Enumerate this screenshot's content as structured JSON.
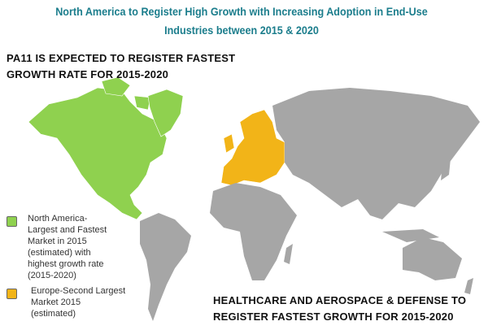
{
  "header": {
    "title_lines": [
      "North America to Register High Growth with Increasing Adoption in End-Use",
      "Industries between 2015 & 2020"
    ]
  },
  "highlight_top": {
    "lines": [
      "PA11 IS EXPECTED TO REGISTER FASTEST",
      "GROWTH RATE FOR 2015-2020"
    ]
  },
  "legend": [
    {
      "lines": [
        "North America-",
        "Largest and Fastest",
        "Market in 2015",
        "(estimated) with",
        "highest growth rate",
        "(2015-2020)"
      ],
      "color": "#8fd14f"
    },
    {
      "lines": [
        "Europe-Second Largest",
        "Market 2015",
        "(estimated)"
      ],
      "color": "#f2b418"
    }
  ],
  "highlight_bottom": {
    "lines": [
      "HEALTHCARE AND AEROSPACE & DEFENSE TO",
      "REGISTER FASTEST GROWTH FOR 2015-2020"
    ]
  }
}
